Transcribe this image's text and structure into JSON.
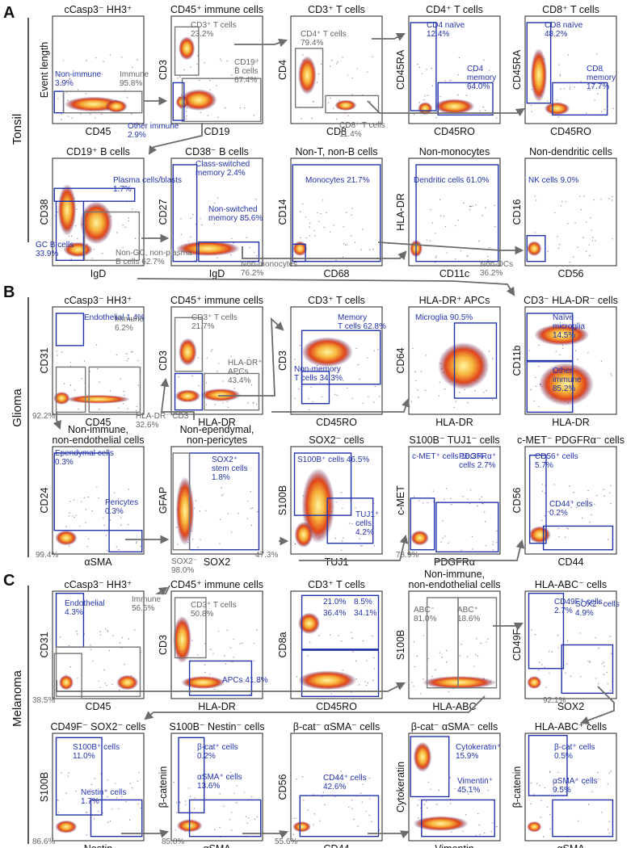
{
  "sections": [
    {
      "letter": "A",
      "tissue": "Tonsil"
    },
    {
      "letter": "B",
      "tissue": "Glioma"
    },
    {
      "letter": "C",
      "tissue": "Melanoma"
    }
  ],
  "colors": {
    "gate_blue": "#2233aa",
    "gate_gray": "#777777",
    "arrow": "#6b6b6b",
    "density_high": "#fff4a0",
    "density_mid": "#e0451c",
    "density_low": "#4a1458"
  },
  "panels": [
    {
      "title": "cCasp3⁻ HH3⁺",
      "xlabel": "CD45",
      "ylabel": "Event length"
    },
    {
      "title": "CD45⁺ immune cells",
      "xlabel": "CD19",
      "ylabel": "CD3"
    },
    {
      "title": "CD3⁺ T cells",
      "xlabel": "CD8",
      "ylabel": "CD4"
    },
    {
      "title": "CD4⁺ T cells",
      "xlabel": "CD45RO",
      "ylabel": "CD45RA"
    },
    {
      "title": "CD8⁺ T cells",
      "xlabel": "CD45RO",
      "ylabel": "CD45RA"
    },
    {
      "title": "CD19⁺ B cells",
      "xlabel": "IgD",
      "ylabel": "CD38"
    },
    {
      "title": "CD38⁻ B cells",
      "xlabel": "IgD",
      "ylabel": "CD27"
    },
    {
      "title": "Non-T, non-B cells",
      "xlabel": "CD68",
      "ylabel": "CD14"
    },
    {
      "title": "Non-monocytes",
      "xlabel": "CD11c",
      "ylabel": "HLA-DR"
    },
    {
      "title": "Non-dendritic cells",
      "xlabel": "CD56",
      "ylabel": "CD16"
    },
    {
      "title": "cCasp3⁻ HH3⁺",
      "xlabel": "CD45",
      "ylabel": "CD31"
    },
    {
      "title": "CD45⁺ immune cells",
      "xlabel": "HLA-DR",
      "ylabel": "CD3"
    },
    {
      "title": "CD3⁺ T cells",
      "xlabel": "CD45RO",
      "ylabel": "CD3"
    },
    {
      "title": "HLA-DR⁺ APCs",
      "xlabel": "HLA-DR",
      "ylabel": "CD64"
    },
    {
      "title": "CD3⁻ HLA-DR⁻ cells",
      "xlabel": "HLA-DR",
      "ylabel": "CD11b"
    },
    {
      "title": "Non-immune,\nnon-endothelial cells",
      "xlabel": "αSMA",
      "ylabel": "CD24"
    },
    {
      "title": "Non-ependymal,\nnon-pericytes",
      "xlabel": "SOX2",
      "ylabel": "GFAP"
    },
    {
      "title": "SOX2⁻ cells",
      "xlabel": "TUJ1",
      "ylabel": "S100B"
    },
    {
      "title": "S100B⁻ TUJ1⁻ cells",
      "xlabel": "PDGFRα",
      "ylabel": "c-MET"
    },
    {
      "title": "c-MET⁻ PDGFRα⁻ cells",
      "xlabel": "CD44",
      "ylabel": "CD56"
    },
    {
      "title": "cCasp3⁻ HH3⁺",
      "xlabel": "CD45",
      "ylabel": "CD31"
    },
    {
      "title": "CD45⁺ immune cells",
      "xlabel": "HLA-DR",
      "ylabel": "CD3"
    },
    {
      "title": "CD3⁺ T cells",
      "xlabel": "CD45RO",
      "ylabel": "CD8a"
    },
    {
      "title": "Non-immune,\nnon-endothelial cells",
      "xlabel": "HLA-ABC",
      "ylabel": "S100B"
    },
    {
      "title": "HLA-ABC⁻ cells",
      "xlabel": "SOX2",
      "ylabel": "CD49F"
    },
    {
      "title": "CD49F⁻ SOX2⁻ cells",
      "xlabel": "Nestin",
      "ylabel": "S100B"
    },
    {
      "title": "S100B⁻ Nestin⁻ cells",
      "xlabel": "αSMA",
      "ylabel": "β-catenin"
    },
    {
      "title": "β-cat⁻ αSMA⁻ cells",
      "xlabel": "CD44",
      "ylabel": "CD56"
    },
    {
      "title": "β-cat⁻ αSMA⁻ cells",
      "xlabel": "Vimentin",
      "ylabel": "Cytokeratin"
    },
    {
      "title": "HLA-ABC⁺ cells",
      "xlabel": "αSMA",
      "ylabel": "β-catenin"
    }
  ],
  "gate_labels": [
    {
      "t": "Non-immune\n3.9%",
      "c": "b"
    },
    {
      "t": "Immune\n95.8%",
      "c": "g"
    },
    {
      "t": "CD3⁺ T cells\n23.2%",
      "c": "g"
    },
    {
      "t": "CD19⁺\nB cells\n67.4%",
      "c": "g"
    },
    {
      "t": "Other immune\n2.9%",
      "c": "b"
    },
    {
      "t": "CD4⁺ T cells\n79.4%",
      "c": "g"
    },
    {
      "t": "CD8⁺ T cells\n11.4%",
      "c": "g"
    },
    {
      "t": "CD4 naïve\n12.4%",
      "c": "b"
    },
    {
      "t": "CD4\nmemory\n64.0%",
      "c": "b"
    },
    {
      "t": "CD8 naïve\n48.2%",
      "c": "b"
    },
    {
      "t": "CD8\nmemory\n17.7%",
      "c": "b"
    },
    {
      "t": "Plasma cells/blasts\n1.7%",
      "c": "b"
    },
    {
      "t": "GC B cells\n33.9%",
      "c": "b"
    },
    {
      "t": "Non-GC, non-plasma\nB cells 62.7%",
      "c": "g"
    },
    {
      "t": "Class-switched\nmemory 2.4%",
      "c": "b"
    },
    {
      "t": "Non-switched\nmemory 85.6%",
      "c": "b"
    },
    {
      "t": "Monocytes 21.7%",
      "c": "b"
    },
    {
      "t": "Non-monocytes\n76.2%",
      "c": "g"
    },
    {
      "t": "Dendritic cells 61.0%",
      "c": "b"
    },
    {
      "t": "Non-DCs\n36.2%",
      "c": "g"
    },
    {
      "t": "NK cells 9.0%",
      "c": "b"
    },
    {
      "t": "Endothelial 1.4%",
      "c": "b"
    },
    {
      "t": "Immune\n6.2%",
      "c": "g"
    },
    {
      "t": "92.2%",
      "c": "g"
    },
    {
      "t": "CD3⁺ T cells\n21.7%",
      "c": "g"
    },
    {
      "t": "HLA-DR⁺\nAPCs\n43.4%",
      "c": "g"
    },
    {
      "t": "HLA-DR⁻ CD3⁻\n32.6%",
      "c": "g"
    },
    {
      "t": "Memory\nT cells 62.8%",
      "c": "b"
    },
    {
      "t": "Non-memory\nT cells 34.3%",
      "c": "b"
    },
    {
      "t": "Microglia 90.5%",
      "c": "b"
    },
    {
      "t": "Naïve\nmicroglia\n14.5%",
      "c": "b"
    },
    {
      "t": "Other\nimmune\n85.2%",
      "c": "b"
    },
    {
      "t": "Ependymal cells\n0.3%",
      "c": "b"
    },
    {
      "t": "Pericytes\n0.3%",
      "c": "b"
    },
    {
      "t": "99.4%",
      "c": "g"
    },
    {
      "t": "SOX2⁺\nstem cells\n1.8%",
      "c": "b"
    },
    {
      "t": "SOX2⁻\n98.0%",
      "c": "g"
    },
    {
      "t": "S100B⁺ cells 46.5%",
      "c": "b"
    },
    {
      "t": "TUJ1⁺\ncells\n4.2%",
      "c": "b"
    },
    {
      "t": "47.3%",
      "c": "g"
    },
    {
      "t": "c-MET⁺ cells 16.3%",
      "c": "b"
    },
    {
      "t": "PDGFRα⁺\ncells 2.7%",
      "c": "b"
    },
    {
      "t": "78.9%",
      "c": "g"
    },
    {
      "t": "CD56⁺ cells\n5.7%",
      "c": "b"
    },
    {
      "t": "CD44⁺ cells\n0.2%",
      "c": "b"
    },
    {
      "t": "Endothelial\n4.3%",
      "c": "b"
    },
    {
      "t": "Immune\n56.6%",
      "c": "g"
    },
    {
      "t": "38.5%",
      "c": "g"
    },
    {
      "t": "CD3⁺ T cells\n50.8%",
      "c": "g"
    },
    {
      "t": "APCs 41.8%",
      "c": "b"
    },
    {
      "t": "21.0%",
      "c": "b"
    },
    {
      "t": "8.5%",
      "c": "b"
    },
    {
      "t": "36.4%",
      "c": "b"
    },
    {
      "t": "34.1%",
      "c": "b"
    },
    {
      "t": "ABC⁻\n81.0%",
      "c": "g"
    },
    {
      "t": "ABC⁺\n18.6%",
      "c": "g"
    },
    {
      "t": "CD49F⁺ cells\n2.7%",
      "c": "b"
    },
    {
      "t": "SOX2⁺ cells\n4.9%",
      "c": "b"
    },
    {
      "t": "92.1%",
      "c": "g"
    },
    {
      "t": "S100B⁺ cells\n11.0%",
      "c": "b"
    },
    {
      "t": "Nestin⁺ cells\n1.7%",
      "c": "b"
    },
    {
      "t": "86.6%",
      "c": "g"
    },
    {
      "t": "β-cat⁺ cells\n0.2%",
      "c": "b"
    },
    {
      "t": "αSMA⁺ cells\n13.6%",
      "c": "b"
    },
    {
      "t": "85.0%",
      "c": "g"
    },
    {
      "t": "CD44⁺ cells\n42.6%",
      "c": "b"
    },
    {
      "t": "55.6%",
      "c": "g"
    },
    {
      "t": "Cytokeratin⁺\n15.9%",
      "c": "b"
    },
    {
      "t": "Vimentin⁺\n45.1%",
      "c": "b"
    },
    {
      "t": "β-cat⁺ cells\n0.5%",
      "c": "b"
    },
    {
      "t": "αSMA⁺ cells\n9.5%",
      "c": "b"
    }
  ]
}
